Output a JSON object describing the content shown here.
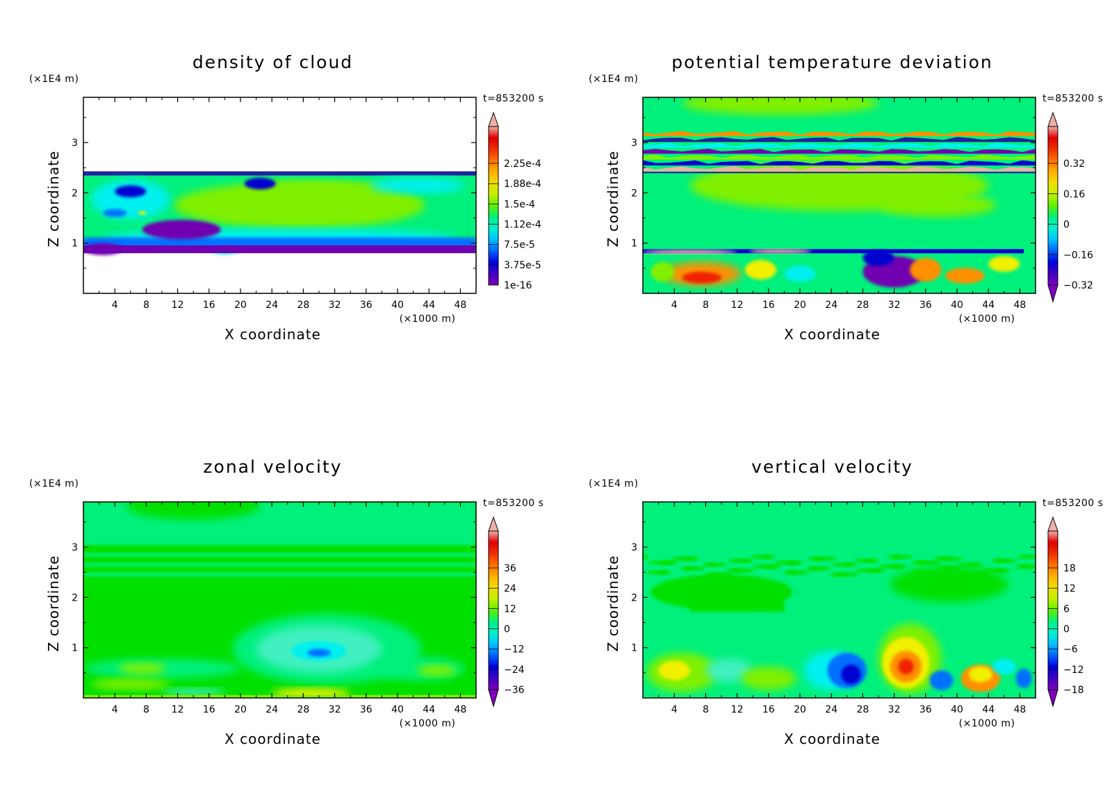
{
  "chart_data": [
    {
      "type": "heatmap",
      "title": "density of cloud",
      "xlabel": "X coordinate",
      "ylabel": "Z coordinate",
      "x_unit": "(×1000 m)",
      "y_unit": "(×1E4 m)",
      "timestamp": "t=853200 s",
      "x_ticks": [
        4,
        8,
        12,
        16,
        20,
        24,
        28,
        32,
        36,
        40,
        44,
        48
      ],
      "y_ticks": [
        1,
        2,
        3
      ],
      "xlim": [
        0,
        50
      ],
      "ylim": [
        0,
        3.9
      ],
      "colorbar_labels": [
        "2.25e-4",
        "1.88e-4",
        "1.5e-4",
        "1.12e-4",
        "7.5e-5",
        "3.75e-5",
        "1e-16"
      ],
      "colorbar_levels": [
        0.000225,
        0.000188,
        0.00015,
        0.000112,
        7.5e-05,
        3.75e-05,
        1e-16
      ],
      "field": "cloud"
    },
    {
      "type": "heatmap",
      "title": "potential temperature deviation",
      "xlabel": "X coordinate",
      "ylabel": "Z coordinate",
      "x_unit": "(×1000 m)",
      "y_unit": "(×1E4 m)",
      "timestamp": "t=853200 s",
      "x_ticks": [
        4,
        8,
        12,
        16,
        20,
        24,
        28,
        32,
        36,
        40,
        44,
        48
      ],
      "y_ticks": [
        1,
        2,
        3
      ],
      "xlim": [
        0,
        50
      ],
      "ylim": [
        0,
        3.9
      ],
      "colorbar_labels": [
        "0.32",
        "0.16",
        "0",
        "−0.16",
        "−0.32"
      ],
      "colorbar_levels": [
        0.32,
        0.16,
        0,
        -0.16,
        -0.32
      ],
      "field": "theta"
    },
    {
      "type": "heatmap",
      "title": "zonal velocity",
      "xlabel": "X coordinate",
      "ylabel": "Z coordinate",
      "x_unit": "(×1000 m)",
      "y_unit": "(×1E4 m)",
      "timestamp": "t=853200 s",
      "x_ticks": [
        4,
        8,
        12,
        16,
        20,
        24,
        28,
        32,
        36,
        40,
        44,
        48
      ],
      "y_ticks": [
        1,
        2,
        3
      ],
      "xlim": [
        0,
        50
      ],
      "ylim": [
        0,
        3.9
      ],
      "colorbar_labels": [
        "36",
        "24",
        "12",
        "0",
        "−12",
        "−24",
        "−36"
      ],
      "colorbar_levels": [
        36,
        24,
        12,
        0,
        -12,
        -24,
        -36
      ],
      "field": "zonal"
    },
    {
      "type": "heatmap",
      "title": "vertical velocity",
      "xlabel": "X coordinate",
      "ylabel": "Z coordinate",
      "x_unit": "(×1000 m)",
      "y_unit": "(×1E4 m)",
      "timestamp": "t=853200 s",
      "x_ticks": [
        4,
        8,
        12,
        16,
        20,
        24,
        28,
        32,
        36,
        40,
        44,
        48
      ],
      "y_ticks": [
        1,
        2,
        3
      ],
      "xlim": [
        0,
        50
      ],
      "ylim": [
        0,
        3.9
      ],
      "colorbar_labels": [
        "18",
        "12",
        "6",
        "0",
        "−6",
        "−12",
        "−18"
      ],
      "colorbar_levels": [
        18,
        12,
        6,
        0,
        -6,
        -12,
        -18
      ],
      "field": "vertical"
    }
  ],
  "colors": {
    "bg_green": "#00f07c",
    "light_green": "#80f000",
    "mid_green": "#00e000",
    "cyan": "#00f0f0",
    "blue": "#0070ff",
    "dark_blue": "#0000d0",
    "navy": "#2020a0",
    "purple": "#7000b0",
    "yellow": "#f0f000",
    "orange": "#ff9000",
    "red": "#f02000",
    "pink": "#f0b0a8"
  },
  "colorbar_gradient": [
    "#8000c0",
    "#4000c0",
    "#0000e0",
    "#0060ff",
    "#00c0ff",
    "#00f0d0",
    "#00f080",
    "#60f000",
    "#c0f000",
    "#f0e000",
    "#ffb000",
    "#ff7000",
    "#f03000",
    "#e00000",
    "#f0b0a8"
  ]
}
